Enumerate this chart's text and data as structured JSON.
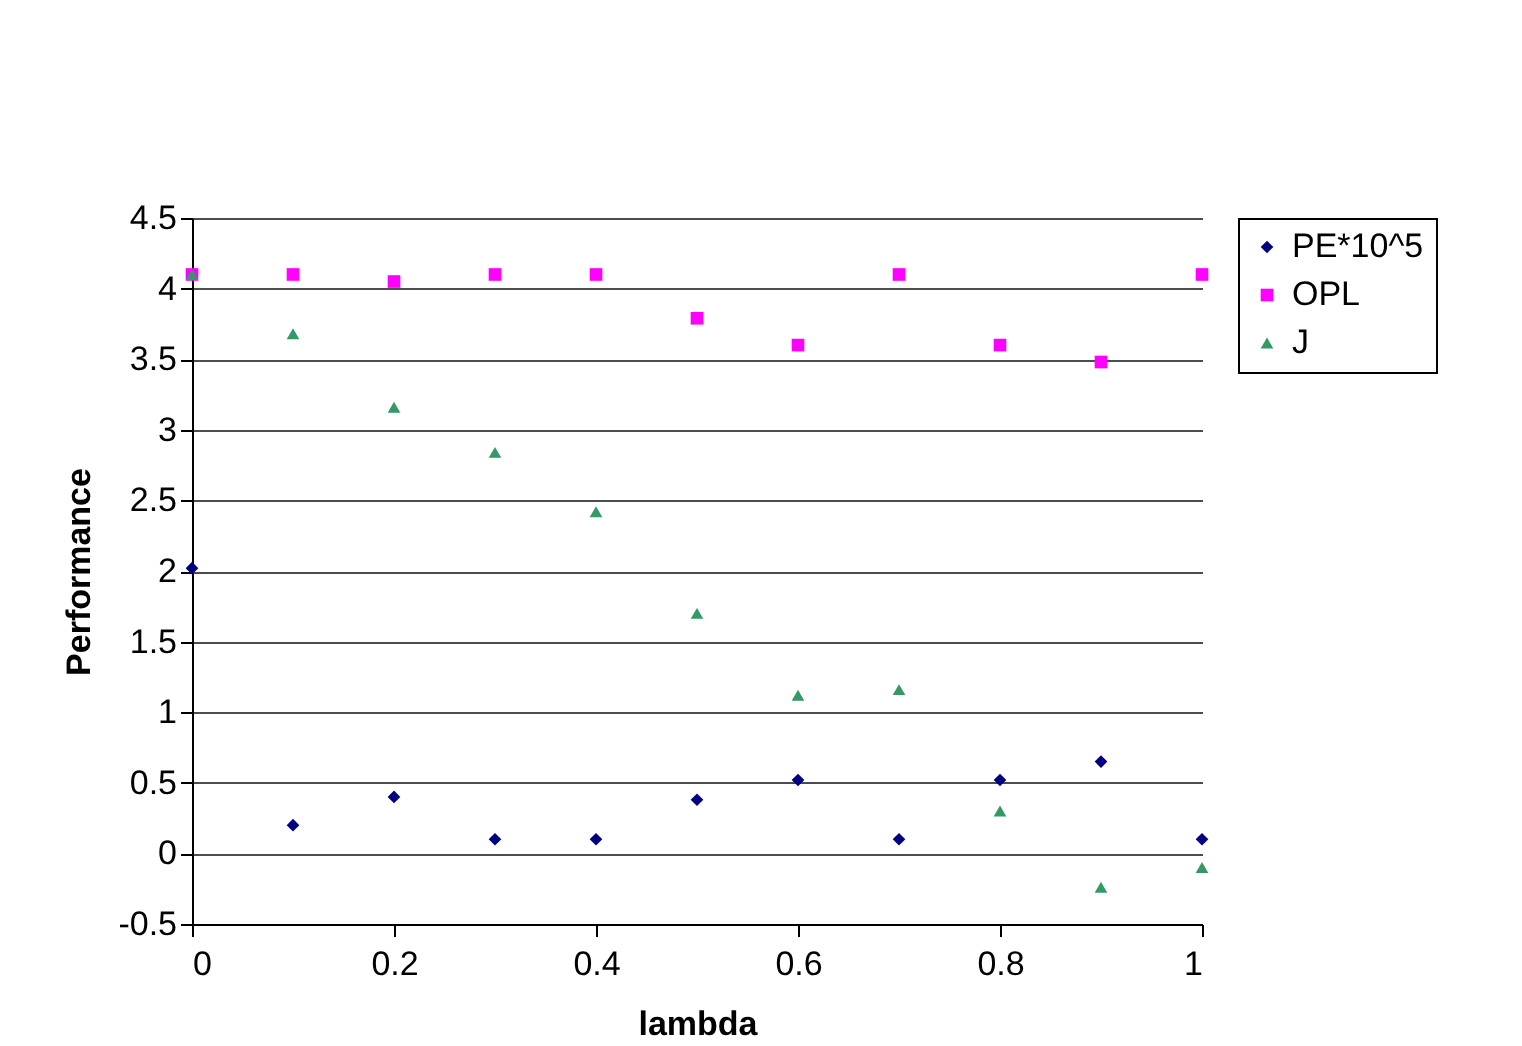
{
  "chart_data": {
    "type": "scatter",
    "xlabel": "lambda",
    "ylabel": "Performance",
    "x": [
      0,
      0.1,
      0.2,
      0.3,
      0.4,
      0.5,
      0.6,
      0.7,
      0.8,
      0.9,
      1
    ],
    "series": [
      {
        "name": "PE*10^5",
        "color": "#000080",
        "marker": "diamond",
        "values": [
          2.02,
          0.2,
          0.4,
          0.1,
          0.1,
          0.38,
          0.52,
          0.1,
          0.52,
          0.65,
          0.1
        ]
      },
      {
        "name": "OPL",
        "color": "#ff00ff",
        "marker": "square",
        "values": [
          4.1,
          4.1,
          4.05,
          4.1,
          4.1,
          3.79,
          3.6,
          4.1,
          3.6,
          3.48,
          4.1
        ]
      },
      {
        "name": "J",
        "color": "#339966",
        "marker": "triangle",
        "values": [
          4.1,
          3.68,
          3.16,
          2.84,
          2.42,
          1.7,
          1.12,
          1.16,
          0.3,
          -0.24,
          -0.1
        ]
      }
    ],
    "xlim": [
      0,
      1
    ],
    "xticks": [
      0,
      0.2,
      0.4,
      0.6,
      0.8,
      1
    ],
    "ylim": [
      -0.5,
      4.5
    ],
    "yticks": [
      -0.5,
      0,
      0.5,
      1,
      1.5,
      2,
      2.5,
      3,
      3.5,
      4,
      4.5
    ],
    "grid": "y",
    "legend": "right"
  }
}
